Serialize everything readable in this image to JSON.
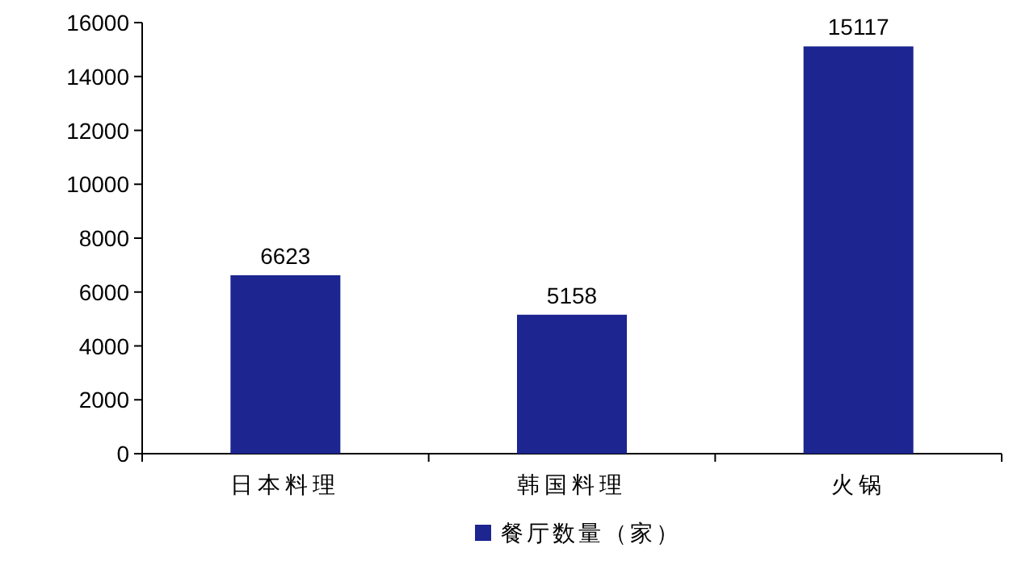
{
  "chart_data": {
    "type": "bar",
    "categories": [
      "日本料理",
      "韩国料理",
      "火锅"
    ],
    "series": [
      {
        "name": "餐厅数量（家）",
        "color": "#1c2590",
        "values": [
          6623,
          5158,
          15117
        ]
      }
    ],
    "ylim": [
      0,
      16000
    ],
    "yticks": [
      0,
      2000,
      4000,
      6000,
      8000,
      10000,
      12000,
      14000,
      16000
    ],
    "data_labels": true,
    "legend": "bottom",
    "grid": false
  }
}
